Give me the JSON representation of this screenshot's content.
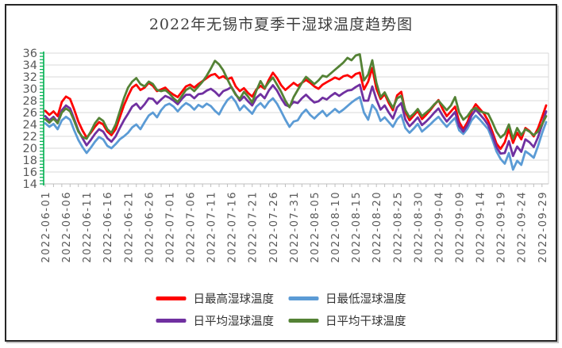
{
  "title": "2022年无锡市夏季干湿球温度趋势图",
  "y_axis": {
    "min": 14,
    "max": 36,
    "step": 2,
    "tick_labels": [
      "36",
      "34",
      "32",
      "30",
      "28",
      "26",
      "24",
      "22",
      "20",
      "18",
      "16",
      "14"
    ]
  },
  "x_axis": {
    "tick_labels": [
      "2022-06-01",
      "2022-06-06",
      "2022-06-11",
      "2022-06-16",
      "2022-06-21",
      "2022-06-26",
      "2022-07-01",
      "2022-07-06",
      "2022-07-11",
      "2022-07-16",
      "2022-07-21",
      "2022-07-26",
      "2022-07-31",
      "2022-08-05",
      "2022-08-10",
      "2022-08-15",
      "2022-08-20",
      "2022-08-25",
      "2022-08-30",
      "2022-09-04",
      "2022-09-09",
      "2022-09-14",
      "2022-09-19",
      "2022-09-24",
      "2022-09-29"
    ],
    "label_every_days": 5
  },
  "legend": [
    {
      "label": "日最高湿球温度",
      "color": "#FE0000"
    },
    {
      "label": "日最低湿球温度",
      "color": "#5B9BD5"
    },
    {
      "label": "日平均湿球温度",
      "color": "#7030A0"
    },
    {
      "label": "日平均干球温度",
      "color": "#548235"
    }
  ],
  "colors": {
    "axis_ruler_green": "#00B050",
    "gridline": "#D9D9D9",
    "axis_line": "#BFBFBF",
    "tick_text": "#595959",
    "title_text": "#3F3F3F"
  },
  "chart_data": {
    "type": "line",
    "title": "2022年无锡市夏季干湿球温度趋势图",
    "x_start": "2022-06-01",
    "x_end": "2022-09-30",
    "x_freq": "daily",
    "n_points": 122,
    "ylim": [
      14,
      36
    ],
    "grid": true,
    "legend_position": "bottom",
    "series": [
      {
        "name": "日最高湿球温度",
        "color": "#FE0000",
        "values": [
          26.3,
          25.6,
          26.2,
          25.4,
          27.8,
          28.7,
          28.3,
          26.5,
          24.5,
          23.0,
          21.8,
          22.6,
          23.6,
          24.4,
          24.0,
          22.8,
          22.2,
          23.2,
          25.2,
          27.2,
          28.8,
          30.2,
          30.7,
          29.8,
          30.2,
          31.0,
          30.5,
          29.6,
          29.9,
          30.2,
          29.5,
          29.0,
          28.6,
          29.5,
          30.4,
          30.7,
          30.2,
          30.8,
          31.3,
          31.8,
          32.3,
          32.5,
          31.8,
          32.1,
          31.6,
          31.9,
          30.4,
          29.6,
          30.1,
          29.3,
          28.7,
          29.9,
          30.5,
          30.0,
          31.5,
          32.7,
          31.8,
          30.6,
          29.8,
          30.4,
          31.0,
          30.5,
          31.0,
          31.5,
          31.0,
          30.4,
          30.0,
          30.7,
          31.1,
          31.5,
          31.9,
          31.6,
          32.1,
          32.3,
          31.9,
          32.5,
          32.7,
          29.9,
          31.2,
          33.5,
          30.0,
          28.3,
          29.1,
          27.6,
          26.4,
          28.9,
          29.5,
          26.1,
          24.7,
          25.5,
          26.3,
          24.9,
          25.6,
          26.4,
          27.3,
          28.1,
          26.6,
          25.4,
          26.2,
          27.0,
          24.4,
          23.2,
          24.4,
          26.2,
          27.4,
          26.6,
          25.8,
          24.6,
          22.8,
          20.8,
          19.9,
          21.0,
          23.2,
          20.9,
          22.6,
          21.5,
          23.4,
          22.9,
          22.0,
          23.3,
          25.2,
          27.2
        ]
      },
      {
        "name": "日最低湿球温度",
        "color": "#5B9BD5",
        "values": [
          24.2,
          23.6,
          24.1,
          23.2,
          24.7,
          25.3,
          24.8,
          23.0,
          21.4,
          20.2,
          19.2,
          20.1,
          21.1,
          21.9,
          21.5,
          20.4,
          20.0,
          20.7,
          21.5,
          22.0,
          22.6,
          23.5,
          24.0,
          23.2,
          24.4,
          25.5,
          26.0,
          25.2,
          26.4,
          27.2,
          27.5,
          27.0,
          26.2,
          27.0,
          27.6,
          27.2,
          26.5,
          27.3,
          26.9,
          27.5,
          27.1,
          26.3,
          25.7,
          27.0,
          28.1,
          28.7,
          27.8,
          26.4,
          27.2,
          26.5,
          25.8,
          27.0,
          27.6,
          26.8,
          27.8,
          28.4,
          27.5,
          26.2,
          24.8,
          23.6,
          24.5,
          24.7,
          25.8,
          26.5,
          25.6,
          25.0,
          25.7,
          26.3,
          25.4,
          26.0,
          26.6,
          26.0,
          26.5,
          27.1,
          27.7,
          28.2,
          28.6,
          26.0,
          24.8,
          27.3,
          26.4,
          24.6,
          25.2,
          24.4,
          23.6,
          24.9,
          25.6,
          23.4,
          22.6,
          23.3,
          24.1,
          22.8,
          23.4,
          24.0,
          24.7,
          25.3,
          24.4,
          23.6,
          24.4,
          25.1,
          23.0,
          22.4,
          23.3,
          24.7,
          25.5,
          24.8,
          24.0,
          23.2,
          21.5,
          19.5,
          18.2,
          17.4,
          19.2,
          16.4,
          17.9,
          17.2,
          19.5,
          19.0,
          18.4,
          20.3,
          22.5,
          24.4
        ]
      },
      {
        "name": "日平均湿球温度",
        "color": "#7030A0",
        "values": [
          25.4,
          24.7,
          25.3,
          24.4,
          26.4,
          27.2,
          26.7,
          24.9,
          23.0,
          21.7,
          20.5,
          21.4,
          22.4,
          23.2,
          22.8,
          21.7,
          21.1,
          22.0,
          23.4,
          24.7,
          25.8,
          27.0,
          27.5,
          26.6,
          27.4,
          28.4,
          28.3,
          27.5,
          28.2,
          28.8,
          28.5,
          28.0,
          27.4,
          28.3,
          29.0,
          29.0,
          28.4,
          29.1,
          29.2,
          29.7,
          30.0,
          29.5,
          28.8,
          29.6,
          29.9,
          30.3,
          29.1,
          28.0,
          28.7,
          27.9,
          27.2,
          28.5,
          29.1,
          28.4,
          29.7,
          30.6,
          29.7,
          28.4,
          27.3,
          27.0,
          27.8,
          27.6,
          28.4,
          29.0,
          28.3,
          27.7,
          27.9,
          28.5,
          28.2,
          28.8,
          29.3,
          28.8,
          29.3,
          29.7,
          29.8,
          30.3,
          30.7,
          28.0,
          28.0,
          30.4,
          28.2,
          26.5,
          27.2,
          26.0,
          25.0,
          26.9,
          27.6,
          24.8,
          23.7,
          24.4,
          25.2,
          23.9,
          24.5,
          25.2,
          26.0,
          26.7,
          25.5,
          24.5,
          25.3,
          26.1,
          23.7,
          22.8,
          23.9,
          25.5,
          26.5,
          25.7,
          24.9,
          23.9,
          22.2,
          20.2,
          19.1,
          19.2,
          21.2,
          18.7,
          20.3,
          19.4,
          21.5,
          21.0,
          20.2,
          21.8,
          23.9,
          26.2
        ]
      },
      {
        "name": "日平均干球温度",
        "color": "#548235",
        "values": [
          24.9,
          24.3,
          25.0,
          24.2,
          26.0,
          26.7,
          26.2,
          24.6,
          22.8,
          21.9,
          21.6,
          22.8,
          24.2,
          25.1,
          24.6,
          23.2,
          22.6,
          24.0,
          26.2,
          28.4,
          30.2,
          31.2,
          31.8,
          30.8,
          30.4,
          31.2,
          30.8,
          29.8,
          29.6,
          29.8,
          29.2,
          28.4,
          27.8,
          28.8,
          29.8,
          30.2,
          29.6,
          30.4,
          31.2,
          32.2,
          33.4,
          34.7,
          34.1,
          33.1,
          31.6,
          30.2,
          29.0,
          28.3,
          29.5,
          28.7,
          27.7,
          29.7,
          31.3,
          30.1,
          31.1,
          31.9,
          30.7,
          29.5,
          28.0,
          26.9,
          28.6,
          29.8,
          31.0,
          32.0,
          31.4,
          30.8,
          31.4,
          32.2,
          32.0,
          32.6,
          33.2,
          33.8,
          34.4,
          35.2,
          34.8,
          35.6,
          35.8,
          31.4,
          32.4,
          34.8,
          31.0,
          28.6,
          29.4,
          28.0,
          26.8,
          28.4,
          28.8,
          26.4,
          25.2,
          25.8,
          26.6,
          25.4,
          26.0,
          26.6,
          27.4,
          28.0,
          27.2,
          26.4,
          27.2,
          28.6,
          26.0,
          24.8,
          25.4,
          26.4,
          26.8,
          26.2,
          26.0,
          25.8,
          24.4,
          22.8,
          21.8,
          22.4,
          24.0,
          21.6,
          23.4,
          22.2,
          23.2,
          22.8,
          22.2,
          22.8,
          24.0,
          25.4
        ]
      }
    ]
  }
}
